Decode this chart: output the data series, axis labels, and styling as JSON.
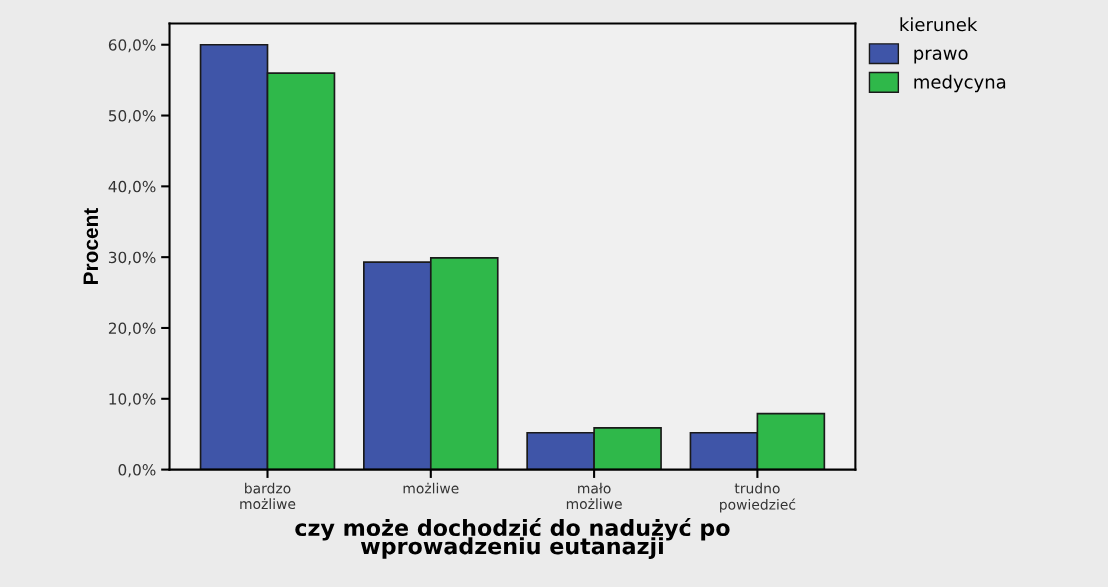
{
  "chart_data": {
    "type": "bar",
    "xlabel": "czy może dochodzić do nadużyć po\nwprowadzeniu eutanazji",
    "ylabel": "Procent",
    "legend_title": "kierunek",
    "categories": [
      "bardzo\nmożliwe",
      "możliwe",
      "mało\nmożliwe",
      "trudno\npowiedzieć"
    ],
    "series": [
      {
        "name": "prawo",
        "color": "#3f55a8",
        "values": [
          60.0,
          29.3,
          5.2,
          5.2
        ]
      },
      {
        "name": "medycyna",
        "color": "#2fb84a",
        "values": [
          56.0,
          29.9,
          5.9,
          7.9
        ]
      }
    ],
    "ylim": [
      0,
      63
    ],
    "yticks": [
      {
        "value": 0,
        "label": "0,0%"
      },
      {
        "value": 10,
        "label": "10,0%"
      },
      {
        "value": 20,
        "label": "20,0%"
      },
      {
        "value": 30,
        "label": "30,0%"
      },
      {
        "value": 40,
        "label": "40,0%"
      },
      {
        "value": 50,
        "label": "50,0%"
      },
      {
        "value": 60,
        "label": "60,0%"
      }
    ],
    "grid": false,
    "legend": "top right"
  }
}
